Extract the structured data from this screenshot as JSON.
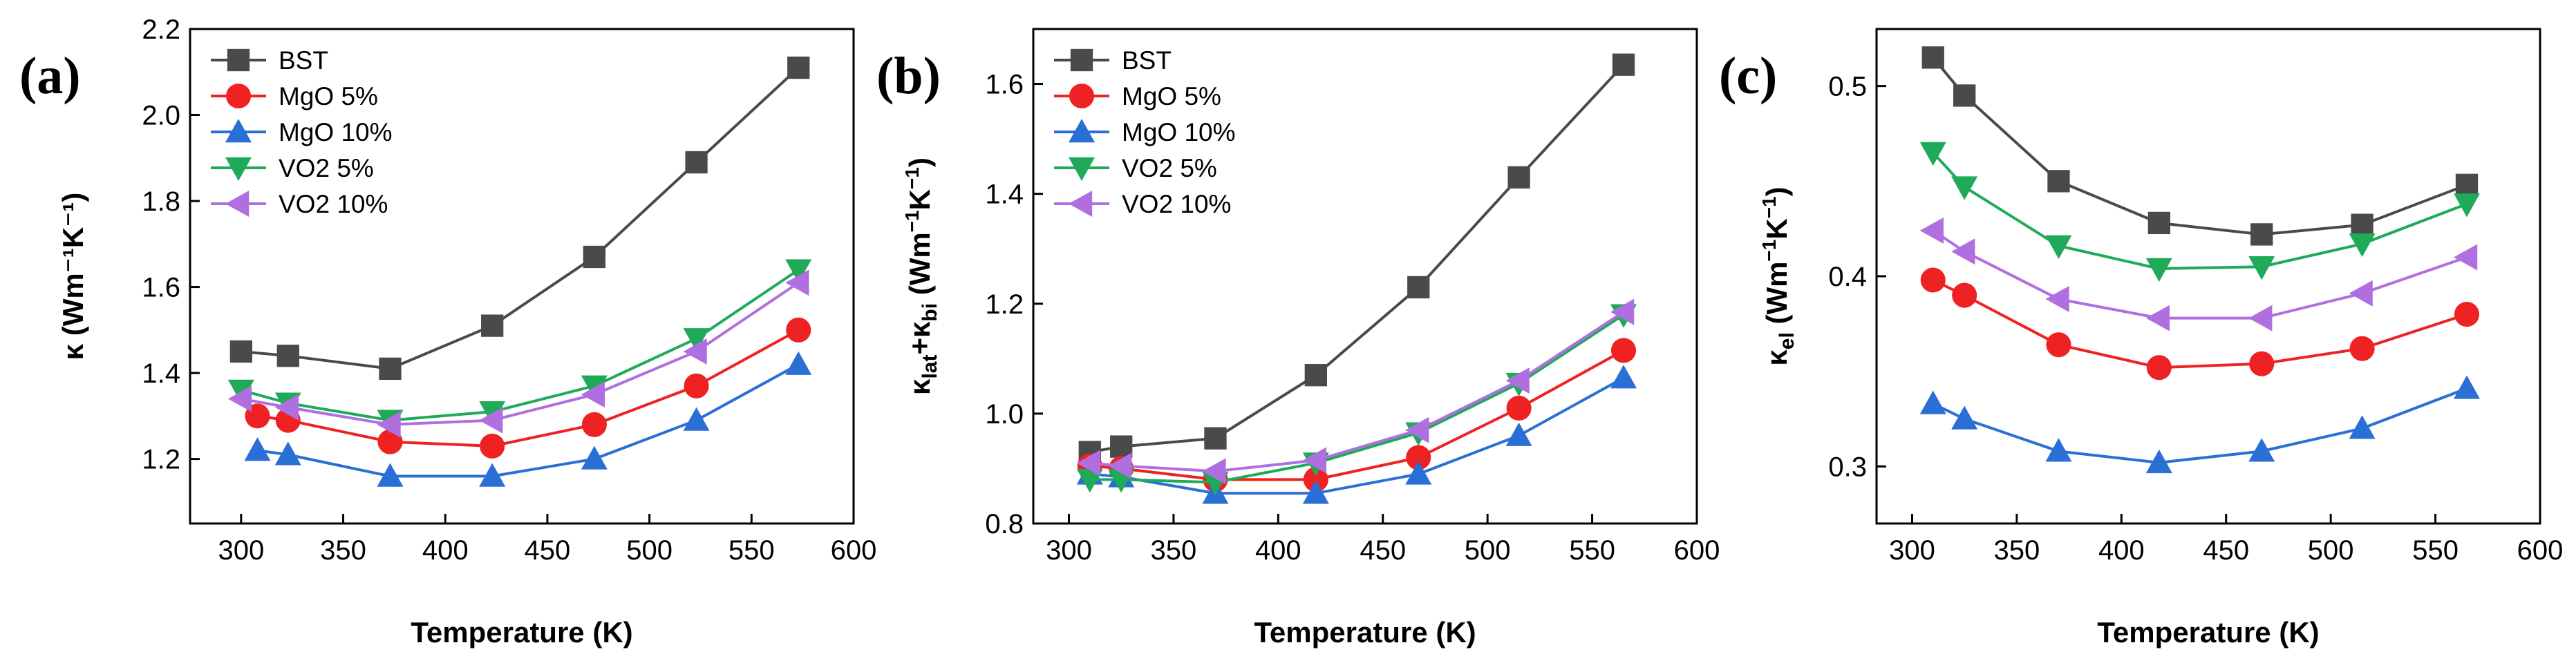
{
  "chart_data": [
    {
      "panel": "(a)",
      "type": "line",
      "xlabel": "Temperature (K)",
      "ylabel": "κ (Wm⁻¹K⁻¹)",
      "xlim": [
        275,
        600
      ],
      "ylim": [
        1.05,
        2.2
      ],
      "xticks": [
        300,
        350,
        400,
        450,
        500,
        550,
        600
      ],
      "yticks": [
        1.2,
        1.4,
        1.6,
        1.8,
        2.0,
        2.2
      ],
      "ytick_labels": [
        "1.2",
        "1.4",
        "1.6",
        "1.8",
        "2.0",
        "2.2"
      ],
      "legend": "top-left",
      "series": [
        {
          "name": "BST",
          "marker": "square",
          "color": "#4a4a4a",
          "x": [
            300,
            323,
            373,
            423,
            473,
            523,
            573
          ],
          "y": [
            1.45,
            1.44,
            1.41,
            1.51,
            1.67,
            1.89,
            2.11
          ]
        },
        {
          "name": "MgO 5%",
          "marker": "circle",
          "color": "#ee2222",
          "x": [
            308,
            323,
            373,
            423,
            473,
            523,
            573
          ],
          "y": [
            1.3,
            1.29,
            1.24,
            1.23,
            1.28,
            1.37,
            1.5
          ]
        },
        {
          "name": "MgO 10%",
          "marker": "triangle-up",
          "color": "#2a6fd6",
          "x": [
            308,
            323,
            373,
            423,
            473,
            523,
            573
          ],
          "y": [
            1.22,
            1.21,
            1.16,
            1.16,
            1.2,
            1.29,
            1.42
          ]
        },
        {
          "name": "VO2 5%",
          "marker": "triangle-down",
          "color": "#1faa5a",
          "x": [
            300,
            323,
            373,
            423,
            473,
            523,
            573
          ],
          "y": [
            1.36,
            1.33,
            1.29,
            1.31,
            1.37,
            1.48,
            1.64
          ]
        },
        {
          "name": "VO2 10%",
          "marker": "triangle-left",
          "color": "#b06fe0",
          "x": [
            300,
            323,
            373,
            423,
            473,
            523,
            573
          ],
          "y": [
            1.34,
            1.32,
            1.28,
            1.29,
            1.35,
            1.45,
            1.61
          ]
        }
      ]
    },
    {
      "panel": "(b)",
      "type": "line",
      "xlabel": "Temperature (K)",
      "ylabel": "κlat+κbi (Wm⁻¹K⁻¹)",
      "xlim": [
        283,
        600
      ],
      "ylim": [
        0.8,
        1.7
      ],
      "xticks": [
        300,
        350,
        400,
        450,
        500,
        550,
        600
      ],
      "yticks": [
        0.8,
        1.0,
        1.2,
        1.4,
        1.6
      ],
      "ytick_labels": [
        "0.8",
        "1.0",
        "1.2",
        "1.4",
        "1.6"
      ],
      "legend": "top-left",
      "series": [
        {
          "name": "BST",
          "marker": "square",
          "color": "#4a4a4a",
          "x": [
            310,
            325,
            370,
            418,
            467,
            515,
            565
          ],
          "y": [
            0.93,
            0.94,
            0.955,
            1.07,
            1.23,
            1.43,
            1.635
          ]
        },
        {
          "name": "MgO 5%",
          "marker": "circle",
          "color": "#ee2222",
          "x": [
            310,
            325,
            370,
            418,
            467,
            515,
            565
          ],
          "y": [
            0.905,
            0.9,
            0.88,
            0.88,
            0.92,
            1.01,
            1.115
          ]
        },
        {
          "name": "MgO 10%",
          "marker": "triangle-up",
          "color": "#2a6fd6",
          "x": [
            310,
            325,
            370,
            418,
            467,
            515,
            565
          ],
          "y": [
            0.89,
            0.885,
            0.855,
            0.855,
            0.89,
            0.96,
            1.065
          ]
        },
        {
          "name": "VO2 5%",
          "marker": "triangle-down",
          "color": "#1faa5a",
          "x": [
            310,
            325,
            370,
            418,
            467,
            515,
            565
          ],
          "y": [
            0.88,
            0.88,
            0.875,
            0.91,
            0.965,
            1.055,
            1.18
          ]
        },
        {
          "name": "VO2 10%",
          "marker": "triangle-left",
          "color": "#b06fe0",
          "x": [
            310,
            325,
            370,
            418,
            467,
            515,
            565
          ],
          "y": [
            0.91,
            0.905,
            0.895,
            0.915,
            0.97,
            1.06,
            1.185
          ]
        }
      ]
    },
    {
      "panel": "(c)",
      "type": "line",
      "xlabel": "Temperature (K)",
      "ylabel": "κel (Wm⁻¹K⁻¹)",
      "xlim": [
        283,
        600
      ],
      "ylim": [
        0.27,
        0.53
      ],
      "xticks": [
        300,
        350,
        400,
        450,
        500,
        550,
        600
      ],
      "yticks": [
        0.3,
        0.4,
        0.5
      ],
      "ytick_labels": [
        "0.3",
        "0.4",
        "0.5"
      ],
      "legend": "none",
      "series": [
        {
          "name": "BST",
          "marker": "square",
          "color": "#4a4a4a",
          "x": [
            310,
            325,
            370,
            418,
            467,
            515,
            565
          ],
          "y": [
            0.515,
            0.495,
            0.45,
            0.428,
            0.422,
            0.427,
            0.448
          ]
        },
        {
          "name": "MgO 5%",
          "marker": "circle",
          "color": "#ee2222",
          "x": [
            310,
            325,
            370,
            418,
            467,
            515,
            565
          ],
          "y": [
            0.398,
            0.39,
            0.364,
            0.352,
            0.354,
            0.362,
            0.38
          ]
        },
        {
          "name": "MgO 10%",
          "marker": "triangle-up",
          "color": "#2a6fd6",
          "x": [
            310,
            325,
            370,
            418,
            467,
            515,
            565
          ],
          "y": [
            0.333,
            0.325,
            0.308,
            0.302,
            0.308,
            0.32,
            0.341
          ]
        },
        {
          "name": "VO2 5%",
          "marker": "triangle-down",
          "color": "#1faa5a",
          "x": [
            310,
            325,
            370,
            418,
            467,
            515,
            565
          ],
          "y": [
            0.465,
            0.447,
            0.416,
            0.404,
            0.405,
            0.417,
            0.438
          ]
        },
        {
          "name": "VO2 10%",
          "marker": "triangle-left",
          "color": "#b06fe0",
          "x": [
            310,
            325,
            370,
            418,
            467,
            515,
            565
          ],
          "y": [
            0.424,
            0.413,
            0.388,
            0.378,
            0.378,
            0.391,
            0.41
          ]
        }
      ]
    }
  ]
}
